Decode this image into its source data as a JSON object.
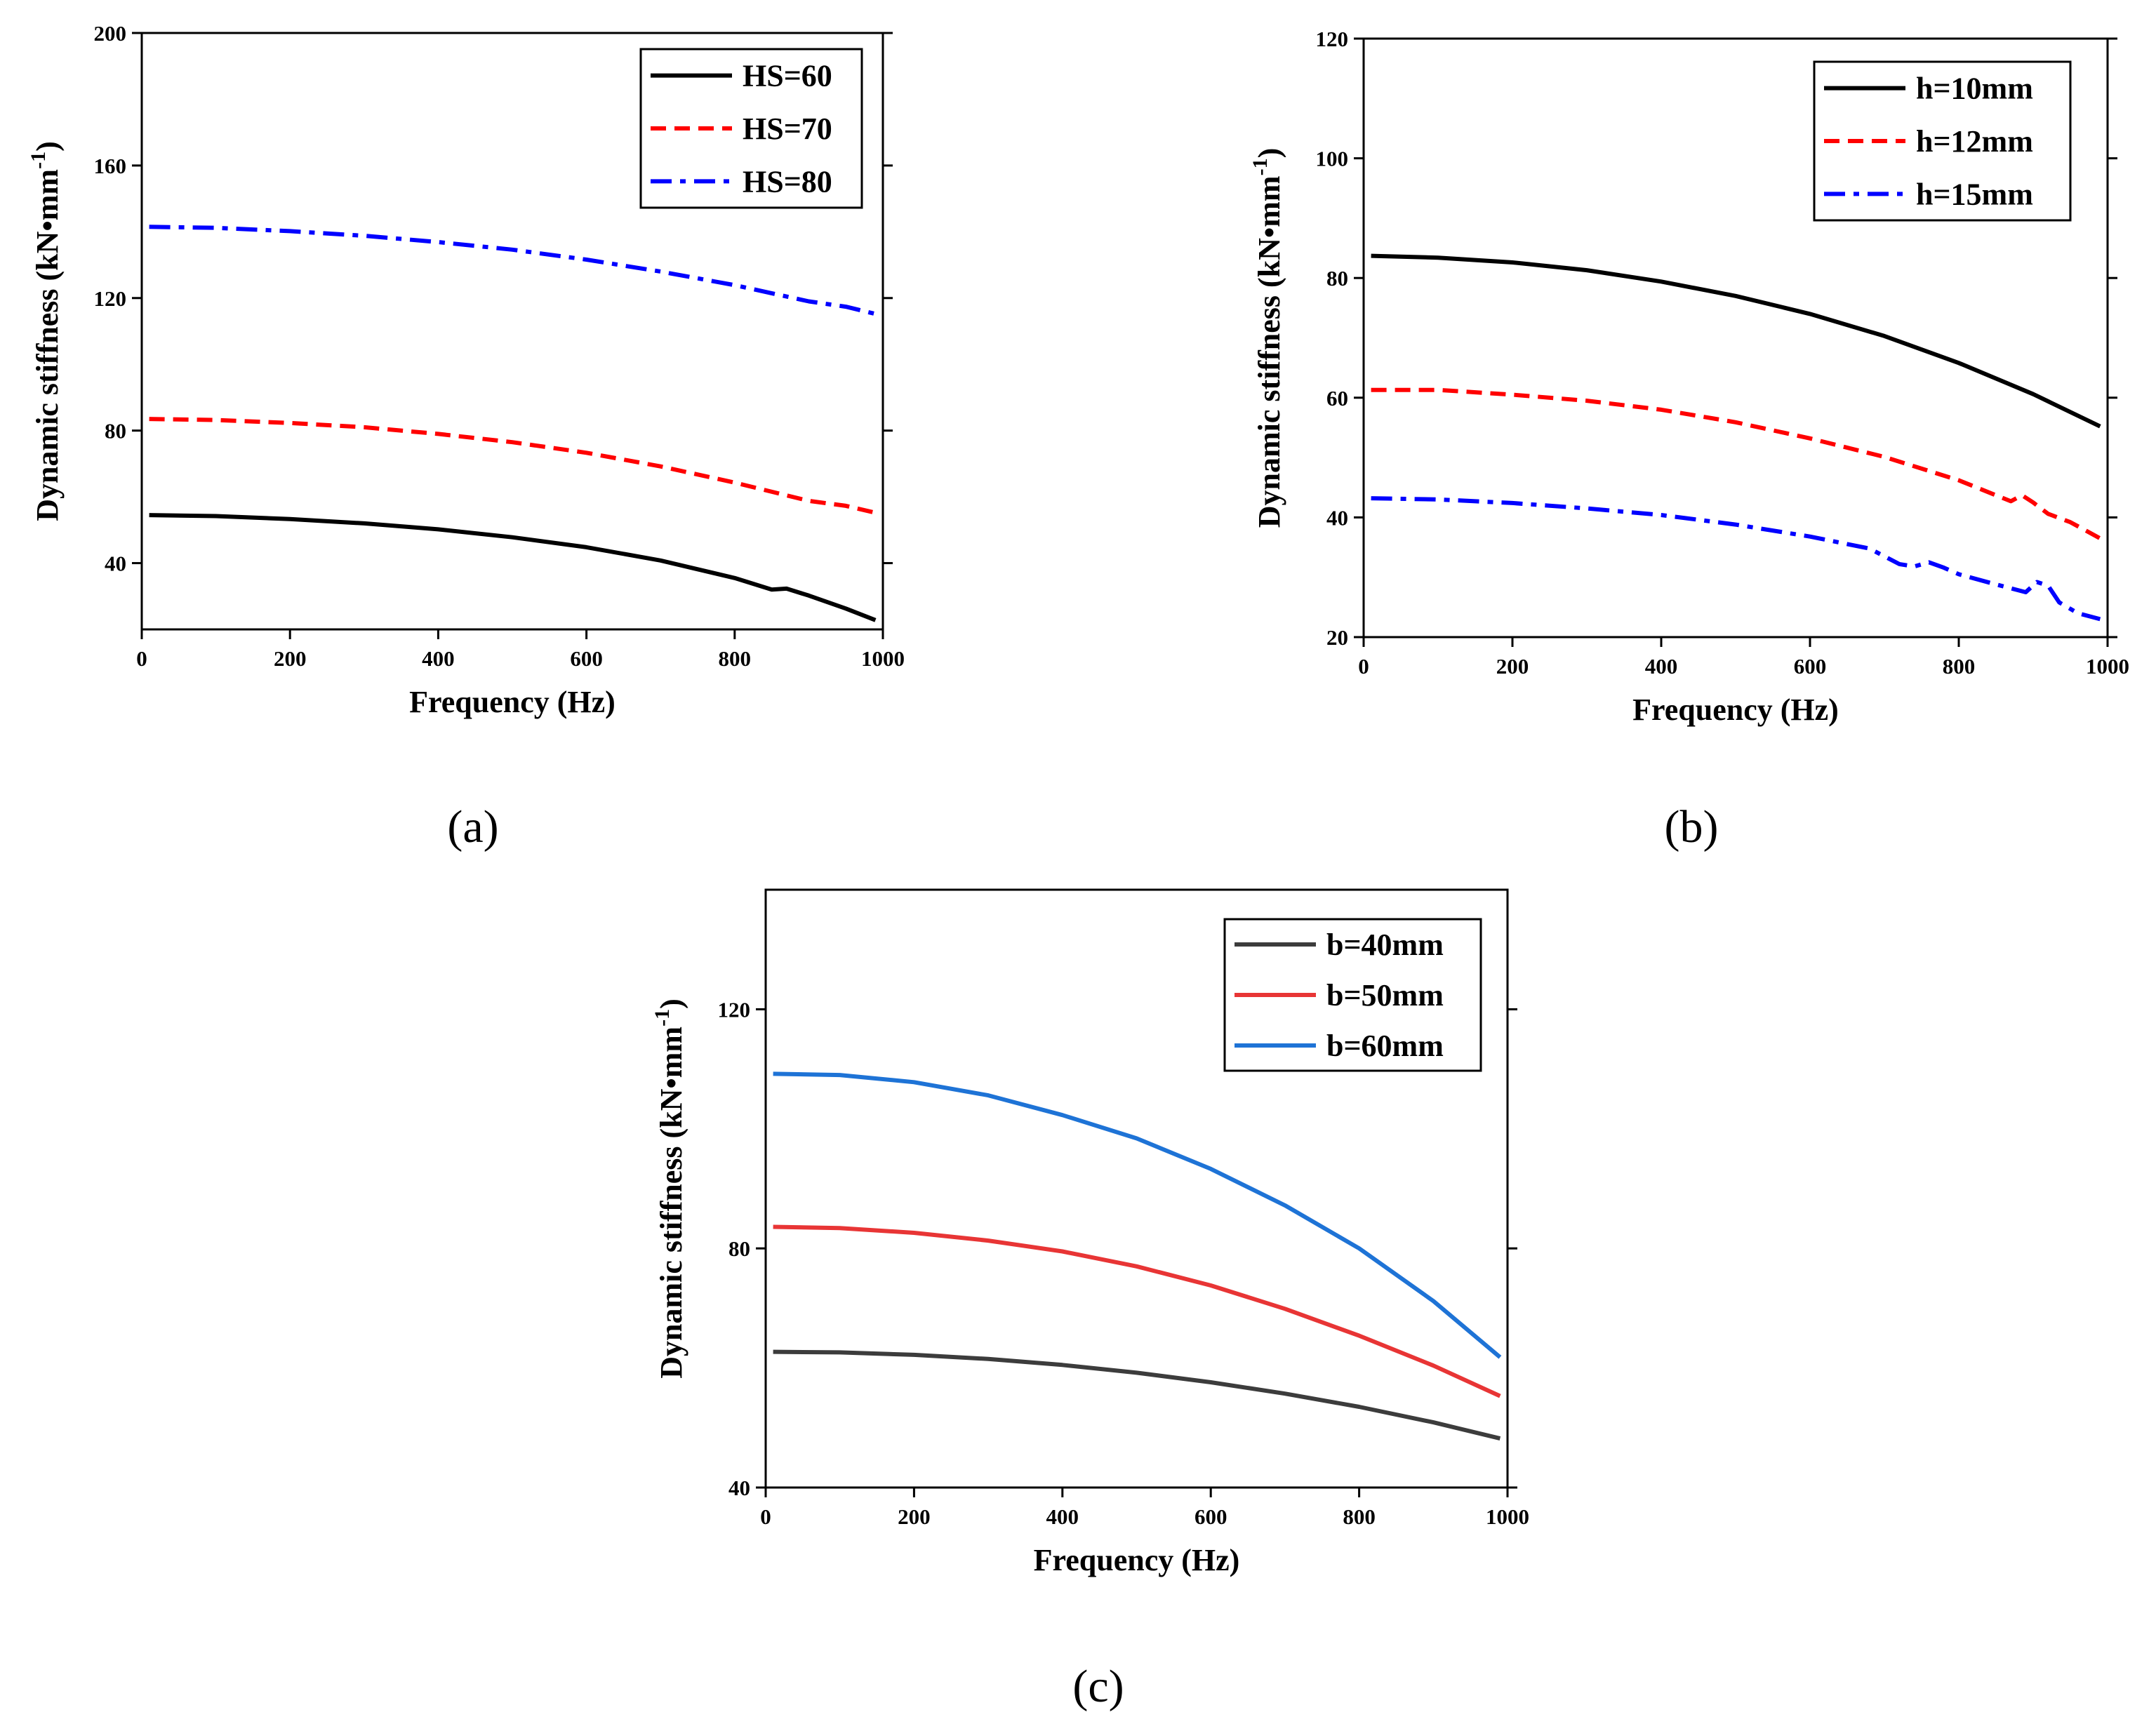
{
  "figure": {
    "panel_labels": [
      "(a)",
      "(b)",
      "(c)"
    ]
  },
  "chart_data": [
    {
      "type": "line",
      "id": "a",
      "title": "",
      "xlabel": "Frequency (Hz)",
      "ylabel_main": "Dynamic stiffness (kN•mm",
      "ylabel_sup": "-1",
      "ylabel_close": ")",
      "xlim": [
        0,
        1000
      ],
      "ylim": [
        20,
        200
      ],
      "xticks": [
        0,
        200,
        400,
        600,
        800,
        1000
      ],
      "yticks": [
        40,
        80,
        120,
        160,
        200
      ],
      "legend_position": "top-right",
      "series": [
        {
          "name": "HS=60",
          "color": "#000000",
          "dash": "solid",
          "x": [
            10,
            100,
            200,
            300,
            400,
            500,
            600,
            700,
            800,
            850,
            870,
            900,
            950,
            990
          ],
          "y": [
            54.5,
            54.2,
            53.3,
            52,
            50.2,
            47.8,
            44.8,
            40.8,
            35.5,
            32,
            32.3,
            30.2,
            26.3,
            22.8
          ]
        },
        {
          "name": "HS=70",
          "color": "#ff0000",
          "dash": "dash",
          "x": [
            10,
            100,
            200,
            300,
            400,
            500,
            600,
            700,
            800,
            900,
            950,
            990
          ],
          "y": [
            83.5,
            83.2,
            82.3,
            81,
            79,
            76.5,
            73.3,
            69.2,
            64.3,
            58.8,
            57.3,
            55.2
          ]
        },
        {
          "name": "HS=80",
          "color": "#0000ff",
          "dash": "dashdot",
          "x": [
            10,
            100,
            200,
            300,
            400,
            500,
            600,
            700,
            800,
            900,
            950,
            990
          ],
          "y": [
            141.5,
            141.2,
            140.2,
            138.8,
            136.9,
            134.6,
            131.6,
            128,
            123.9,
            119,
            117.4,
            115.2
          ]
        }
      ]
    },
    {
      "type": "line",
      "id": "b",
      "title": "",
      "xlabel": "Frequency (Hz)",
      "ylabel_main": "Dynamic stiffness (kN•mm",
      "ylabel_sup": "-1",
      "ylabel_close": ")",
      "xlim": [
        0,
        1000
      ],
      "ylim": [
        20,
        120
      ],
      "xticks": [
        0,
        200,
        400,
        600,
        800,
        1000
      ],
      "yticks": [
        20,
        40,
        60,
        80,
        100,
        120
      ],
      "legend_position": "top-right",
      "series": [
        {
          "name": "h=10mm",
          "color": "#000000",
          "dash": "solid",
          "x": [
            10,
            100,
            200,
            300,
            400,
            500,
            600,
            700,
            800,
            900,
            990
          ],
          "y": [
            83.7,
            83.4,
            82.6,
            81.3,
            79.4,
            77,
            74,
            70.3,
            65.8,
            60.6,
            55.2
          ]
        },
        {
          "name": "h=12mm",
          "color": "#ff0000",
          "dash": "dash",
          "x": [
            10,
            100,
            200,
            300,
            400,
            500,
            600,
            700,
            800,
            870,
            885,
            900,
            920,
            950,
            990
          ],
          "y": [
            61.3,
            61.3,
            60.5,
            59.5,
            58,
            55.9,
            53.2,
            50.1,
            46.2,
            42.7,
            43.7,
            42.5,
            40.6,
            39.2,
            36.5
          ]
        },
        {
          "name": "h=15mm",
          "color": "#0000ff",
          "dash": "dashdot",
          "x": [
            10,
            100,
            200,
            300,
            400,
            500,
            600,
            680,
            720,
            740,
            760,
            780,
            800,
            850,
            890,
            905,
            920,
            935,
            960,
            990
          ],
          "y": [
            43.2,
            43,
            42.4,
            41.5,
            40.4,
            38.8,
            36.8,
            34.8,
            32.2,
            31.8,
            32.5,
            31.6,
            30.5,
            28.8,
            27.5,
            29.2,
            28.6,
            25.8,
            24,
            23
          ]
        }
      ]
    },
    {
      "type": "line",
      "id": "c",
      "title": "",
      "xlabel": "Frequency (Hz)",
      "ylabel_main": "Dynamic stiffness (kN•mm",
      "ylabel_sup": "-1",
      "ylabel_close": ")",
      "xlim": [
        0,
        1000
      ],
      "ylim": [
        40,
        140
      ],
      "xticks": [
        0,
        200,
        400,
        600,
        800,
        1000
      ],
      "yticks": [
        40,
        80,
        120
      ],
      "legend_position": "top-right",
      "series": [
        {
          "name": "b=40mm",
          "color": "#3c3c3c",
          "dash": "solid",
          "x": [
            10,
            100,
            200,
            300,
            400,
            500,
            600,
            700,
            800,
            900,
            990
          ],
          "y": [
            62.7,
            62.6,
            62.2,
            61.5,
            60.5,
            59.2,
            57.6,
            55.7,
            53.5,
            50.9,
            48.2
          ]
        },
        {
          "name": "b=50mm",
          "color": "#e83535",
          "dash": "solid",
          "x": [
            10,
            100,
            200,
            300,
            400,
            500,
            600,
            700,
            800,
            900,
            990
          ],
          "y": [
            83.6,
            83.4,
            82.6,
            81.3,
            79.5,
            77,
            73.8,
            69.9,
            65.4,
            60.4,
            55.3
          ]
        },
        {
          "name": "b=60mm",
          "color": "#1e73d6",
          "dash": "solid",
          "x": [
            10,
            100,
            200,
            300,
            400,
            500,
            600,
            700,
            800,
            900,
            990
          ],
          "y": [
            109.2,
            109,
            107.8,
            105.6,
            102.3,
            98.4,
            93.3,
            87.2,
            80,
            71.2,
            61.8
          ]
        }
      ]
    }
  ]
}
